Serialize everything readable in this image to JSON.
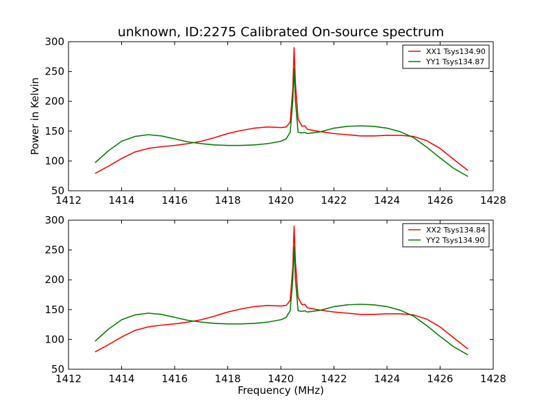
{
  "figure_title": "unknown, ID:2275 Calibrated On-source spectrum",
  "chart_data": [
    {
      "type": "line",
      "title": "unknown, ID:2275 Calibrated On-source spectrum",
      "xlabel": "",
      "ylabel": "Power in Kelvin",
      "xlim": [
        1412,
        1428
      ],
      "ylim": [
        50,
        300
      ],
      "x_ticks": [
        "1412",
        "1414",
        "1416",
        "1418",
        "1420",
        "1422",
        "1424",
        "1426",
        "1428"
      ],
      "y_ticks": [
        "50",
        "100",
        "150",
        "200",
        "250",
        "300"
      ],
      "legend_position": "top-right",
      "grid": false,
      "series": [
        {
          "name": "XX1 Tsys134.90",
          "color": "#ff0000",
          "x": [
            1413.0,
            1413.5,
            1414.0,
            1414.5,
            1415.0,
            1415.5,
            1416.0,
            1416.5,
            1417.0,
            1417.5,
            1418.0,
            1418.5,
            1419.0,
            1419.5,
            1420.0,
            1420.2,
            1420.35,
            1420.45,
            1420.5,
            1420.55,
            1420.65,
            1420.8,
            1420.9,
            1421.0,
            1421.5,
            1422.0,
            1422.5,
            1423.0,
            1423.5,
            1424.0,
            1424.5,
            1425.0,
            1425.5,
            1426.0,
            1426.5,
            1427.05
          ],
          "values": [
            79,
            91,
            104,
            115,
            121,
            124,
            126,
            129,
            133,
            139,
            146,
            151,
            155,
            157,
            156,
            157,
            165,
            220,
            290,
            230,
            170,
            158,
            159,
            153,
            149,
            146,
            144,
            142,
            142,
            143,
            143,
            141,
            134,
            121,
            103,
            84
          ]
        },
        {
          "name": "YY1 Tsys134.87",
          "color": "#007f00",
          "x": [
            1413.0,
            1413.5,
            1414.0,
            1414.5,
            1415.0,
            1415.5,
            1416.0,
            1416.5,
            1417.0,
            1417.5,
            1418.0,
            1418.5,
            1419.0,
            1419.5,
            1420.0,
            1420.2,
            1420.35,
            1420.45,
            1420.5,
            1420.55,
            1420.65,
            1420.8,
            1420.9,
            1421.0,
            1421.5,
            1422.0,
            1422.5,
            1423.0,
            1423.5,
            1424.0,
            1424.5,
            1425.0,
            1425.5,
            1426.0,
            1426.5,
            1427.05
          ],
          "values": [
            97,
            117,
            133,
            141,
            144,
            142,
            137,
            132,
            129,
            127,
            126,
            126,
            127,
            129,
            133,
            137,
            148,
            200,
            255,
            200,
            148,
            147,
            148,
            146,
            149,
            155,
            158,
            159,
            158,
            155,
            149,
            139,
            123,
            105,
            88,
            74
          ]
        }
      ]
    },
    {
      "type": "line",
      "title": "",
      "xlabel": "Frequency (MHz)",
      "ylabel": "",
      "xlim": [
        1412,
        1428
      ],
      "ylim": [
        50,
        300
      ],
      "x_ticks": [
        "1412",
        "1414",
        "1416",
        "1418",
        "1420",
        "1422",
        "1424",
        "1426",
        "1428"
      ],
      "y_ticks": [
        "50",
        "100",
        "150",
        "200",
        "250",
        "300"
      ],
      "legend_position": "top-right",
      "grid": false,
      "series": [
        {
          "name": "XX2 Tsys134.84",
          "color": "#ff0000",
          "x": [
            1413.0,
            1413.5,
            1414.0,
            1414.5,
            1415.0,
            1415.5,
            1416.0,
            1416.5,
            1417.0,
            1417.5,
            1418.0,
            1418.5,
            1419.0,
            1419.5,
            1420.0,
            1420.2,
            1420.35,
            1420.45,
            1420.5,
            1420.55,
            1420.65,
            1420.8,
            1420.9,
            1421.0,
            1421.5,
            1422.0,
            1422.5,
            1423.0,
            1423.5,
            1424.0,
            1424.5,
            1425.0,
            1425.5,
            1426.0,
            1426.5,
            1427.05
          ],
          "values": [
            79,
            91,
            104,
            115,
            121,
            124,
            126,
            129,
            133,
            139,
            146,
            151,
            155,
            157,
            156,
            157,
            165,
            220,
            290,
            230,
            170,
            158,
            159,
            153,
            149,
            146,
            144,
            142,
            142,
            143,
            143,
            141,
            134,
            121,
            103,
            84
          ]
        },
        {
          "name": "YY2 Tsys134.90",
          "color": "#007f00",
          "x": [
            1413.0,
            1413.5,
            1414.0,
            1414.5,
            1415.0,
            1415.5,
            1416.0,
            1416.5,
            1417.0,
            1417.5,
            1418.0,
            1418.5,
            1419.0,
            1419.5,
            1420.0,
            1420.2,
            1420.35,
            1420.45,
            1420.5,
            1420.55,
            1420.65,
            1420.8,
            1420.9,
            1421.0,
            1421.5,
            1422.0,
            1422.5,
            1423.0,
            1423.5,
            1424.0,
            1424.5,
            1425.0,
            1425.5,
            1426.0,
            1426.5,
            1427.05
          ],
          "values": [
            97,
            117,
            133,
            141,
            144,
            142,
            137,
            132,
            129,
            127,
            126,
            126,
            127,
            129,
            133,
            137,
            148,
            200,
            255,
            200,
            148,
            147,
            148,
            146,
            149,
            155,
            158,
            159,
            158,
            155,
            149,
            139,
            123,
            105,
            88,
            74
          ]
        }
      ]
    }
  ]
}
